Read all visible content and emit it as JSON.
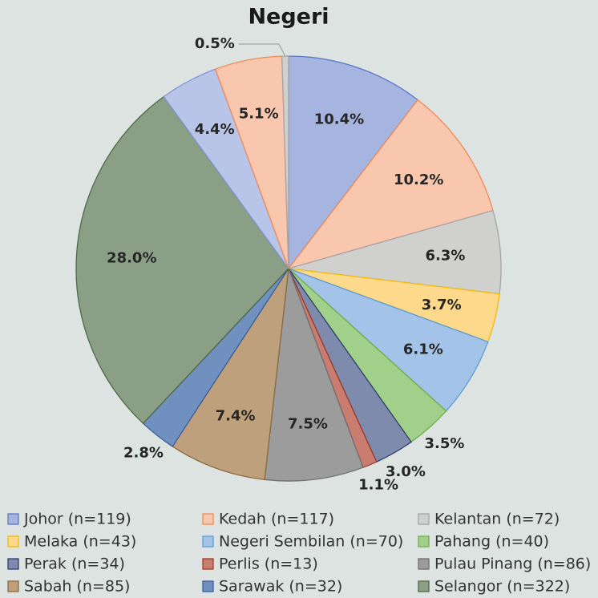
{
  "chart_data": {
    "type": "pie",
    "title": "Negeri",
    "categories": [
      "Johor (n=119)",
      "Kedah (n=117)",
      "Kelantan (n=72)",
      "Melaka (n=43)",
      "Negeri Sembilan (n=70)",
      "Pahang (n=40)",
      "Perak (n=34)",
      "Perlis (n=13)",
      "Pulau Pinang (n=86)",
      "Sabah (n=85)",
      "Sarawak (n=32)",
      "Selangor (n=322)",
      null,
      null,
      null
    ],
    "values": [
      10.4,
      10.2,
      6.3,
      3.7,
      6.1,
      3.5,
      3.0,
      1.1,
      7.5,
      7.4,
      2.8,
      28.0,
      4.4,
      5.1,
      0.5
    ],
    "value_labels": [
      "10.4%",
      "10.2%",
      "6.3%",
      "3.7%",
      "6.1%",
      "3.5%",
      "3.0%",
      "1.1%",
      "7.5%",
      "7.4%",
      "2.8%",
      "28.0%",
      "4.4%",
      "5.1%",
      "0.5%"
    ],
    "colors": [
      "#a5b5e0",
      "#f8c7ae",
      "#d0d0cf",
      "#fdd98b",
      "#a4c3e9",
      "#a1d08b",
      "#7f8bac",
      "#c97c70",
      "#9c9c9c",
      "#bea07c",
      "#7090c0",
      "#8b9f87",
      "#b9c5e8",
      "#f8c7ae",
      "#d0d0cf"
    ],
    "edge_colors": [
      "#5b79c9",
      "#f08a55",
      "#a5a5a5",
      "#f5b90a",
      "#5b9bd5",
      "#70ad47",
      "#2f3f6b",
      "#9e3c2c",
      "#707070",
      "#8b6a3f",
      "#3b5f99",
      "#4a6b45",
      "#7f95d5",
      "#f08a55",
      "#a5a5a5"
    ]
  }
}
